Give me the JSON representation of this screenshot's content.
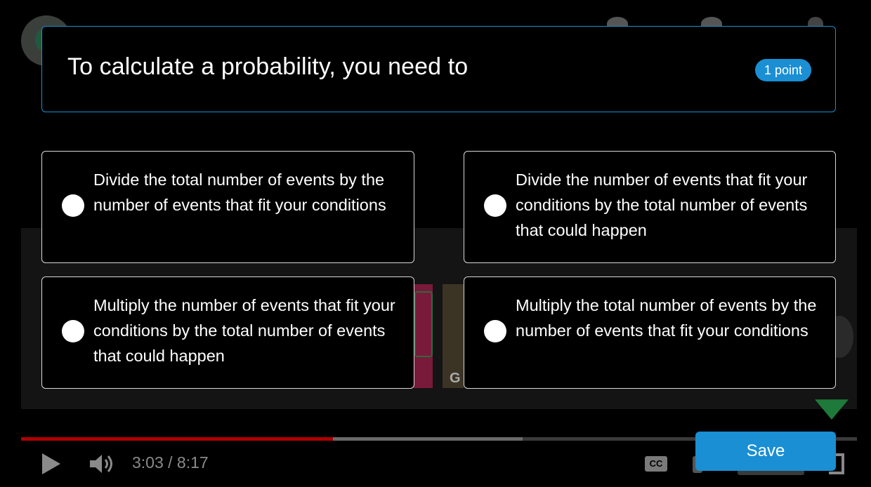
{
  "player": {
    "time_text": "3:03 / 8:17",
    "played_fraction": 0.373,
    "buffered_fraction": 0.6,
    "cc_label": "CC"
  },
  "quiz": {
    "question": "To calculate a probability, you need to",
    "points_label": "1 point",
    "options": [
      {
        "label": "Divide the total number of events by the number of events that fit your conditions"
      },
      {
        "label": "Divide the number of events that fit your conditions by the total number of events that could happen"
      },
      {
        "label": "Multiply the number of events that fit your conditions by the total number of events that could happen"
      },
      {
        "label": "Multiply the total number of events by the number of events that fit your conditions"
      }
    ],
    "save_label": "Save"
  },
  "colors": {
    "accent": "#1a8fd3",
    "progress_played": "#b00000"
  },
  "icons": [
    "channel-logo-icon",
    "play-icon",
    "volume-icon",
    "cc-icon",
    "settings-icon",
    "fullscreen-icon"
  ]
}
